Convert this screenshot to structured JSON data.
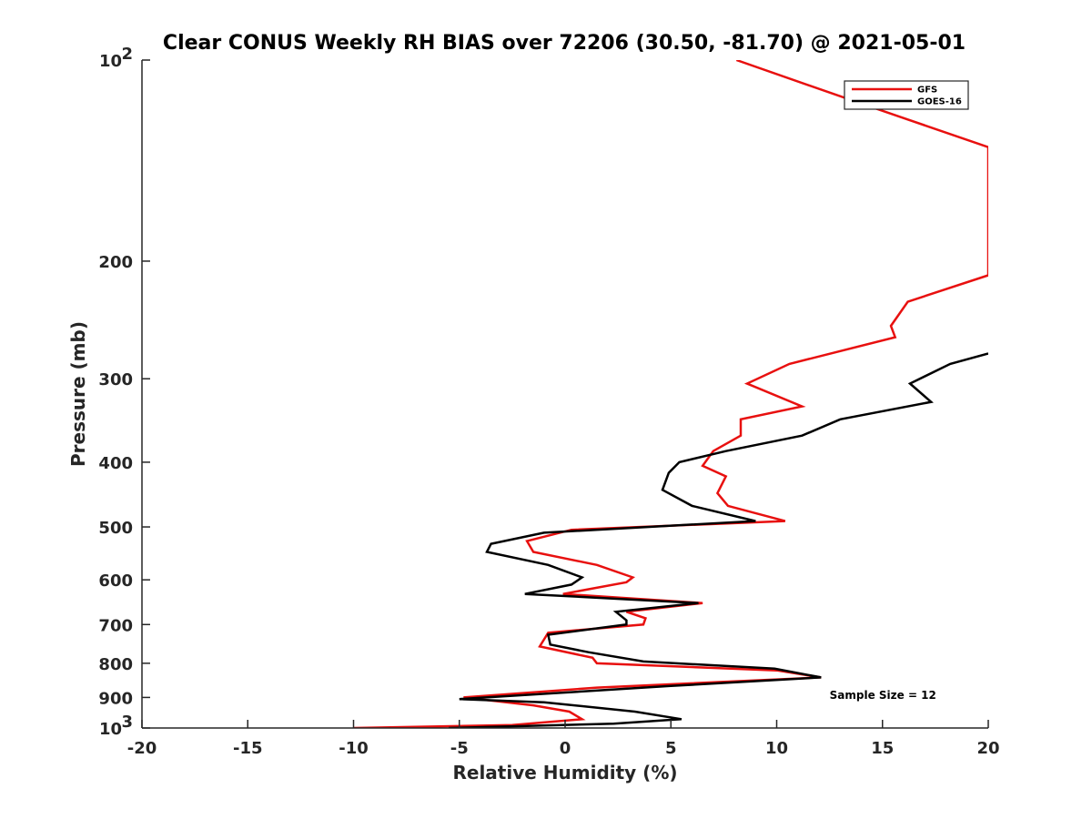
{
  "chart_data": {
    "type": "line",
    "title": "Clear CONUS Weekly RH BIAS over 72206 (30.50, -81.70) @ 2021-05-01",
    "xlabel": "Relative Humidity (%)",
    "ylabel": "Pressure (mb)",
    "xlim": [
      -20,
      20
    ],
    "ylim": [
      100,
      1000
    ],
    "yscale": "log",
    "y_reversed": true,
    "grid": false,
    "legend_position": "top-right",
    "x_ticks": [
      "-20",
      "-15",
      "-10",
      "-5",
      "0",
      "5",
      "10",
      "15",
      "20"
    ],
    "x_tick_values": [
      -20,
      -15,
      -10,
      -5,
      0,
      5,
      10,
      15,
      20
    ],
    "y_ticks": [
      {
        "value": 100,
        "base": "10",
        "exp": "2"
      },
      {
        "value": 200,
        "label": "200"
      },
      {
        "value": 300,
        "label": "300"
      },
      {
        "value": 400,
        "label": "400"
      },
      {
        "value": 500,
        "label": "500"
      },
      {
        "value": 600,
        "label": "600"
      },
      {
        "value": 700,
        "label": "700"
      },
      {
        "value": 800,
        "label": "800"
      },
      {
        "value": 900,
        "label": "900"
      },
      {
        "value": 1000,
        "base": "10",
        "exp": "3"
      }
    ],
    "series": [
      {
        "name": "GFS",
        "color": "#e8100f",
        "points": [
          [
            8.1,
            100
          ],
          [
            13.6,
            115
          ],
          [
            20,
            135
          ],
          [
            20,
            210
          ],
          [
            16.2,
            230
          ],
          [
            15.4,
            250
          ],
          [
            15.6,
            260
          ],
          [
            10.6,
            285
          ],
          [
            8.6,
            305
          ],
          [
            11.2,
            330
          ],
          [
            8.3,
            345
          ],
          [
            8.3,
            365
          ],
          [
            7.0,
            385
          ],
          [
            6.5,
            405
          ],
          [
            7.6,
            420
          ],
          [
            7.2,
            445
          ],
          [
            7.7,
            465
          ],
          [
            10.4,
            490
          ],
          [
            0.3,
            505
          ],
          [
            -1.8,
            525
          ],
          [
            -1.5,
            545
          ],
          [
            1.5,
            570
          ],
          [
            3.2,
            595
          ],
          [
            2.9,
            605
          ],
          [
            -0.1,
            630
          ],
          [
            6.5,
            650
          ],
          [
            2.9,
            670
          ],
          [
            3.8,
            685
          ],
          [
            3.7,
            700
          ],
          [
            -0.8,
            720
          ],
          [
            -1.2,
            755
          ],
          [
            1.3,
            785
          ],
          [
            1.5,
            800
          ],
          [
            10.0,
            820
          ],
          [
            12.1,
            840
          ],
          [
            1.5,
            870
          ],
          [
            -4.8,
            900
          ],
          [
            -1.5,
            925
          ],
          [
            0.2,
            945
          ],
          [
            0.8,
            970
          ],
          [
            -2.5,
            990
          ],
          [
            -10.0,
            1000
          ]
        ]
      },
      {
        "name": "GOES-16",
        "color": "#000000",
        "points": [
          [
            20,
            275
          ],
          [
            18.2,
            285
          ],
          [
            16.3,
            305
          ],
          [
            17.3,
            325
          ],
          [
            13.0,
            345
          ],
          [
            11.2,
            365
          ],
          [
            7.6,
            385
          ],
          [
            5.4,
            400
          ],
          [
            4.9,
            415
          ],
          [
            4.6,
            440
          ],
          [
            6.0,
            465
          ],
          [
            9.0,
            490
          ],
          [
            -1.0,
            510
          ],
          [
            -3.5,
            530
          ],
          [
            -3.7,
            545
          ],
          [
            -0.8,
            570
          ],
          [
            0.8,
            595
          ],
          [
            0.3,
            610
          ],
          [
            -1.9,
            630
          ],
          [
            6.3,
            650
          ],
          [
            2.4,
            670
          ],
          [
            2.9,
            690
          ],
          [
            2.9,
            700
          ],
          [
            -0.8,
            725
          ],
          [
            -0.7,
            750
          ],
          [
            1.1,
            770
          ],
          [
            3.7,
            795
          ],
          [
            9.9,
            815
          ],
          [
            12.1,
            840
          ],
          [
            5.0,
            865
          ],
          [
            -5.0,
            905
          ],
          [
            -1.0,
            915
          ],
          [
            3.3,
            945
          ],
          [
            5.5,
            970
          ],
          [
            2.3,
            985
          ],
          [
            -5.5,
            1000
          ]
        ]
      }
    ],
    "annotations": [
      {
        "text": "Sample Size = 12",
        "x": 12.5,
        "y": 905
      }
    ]
  }
}
